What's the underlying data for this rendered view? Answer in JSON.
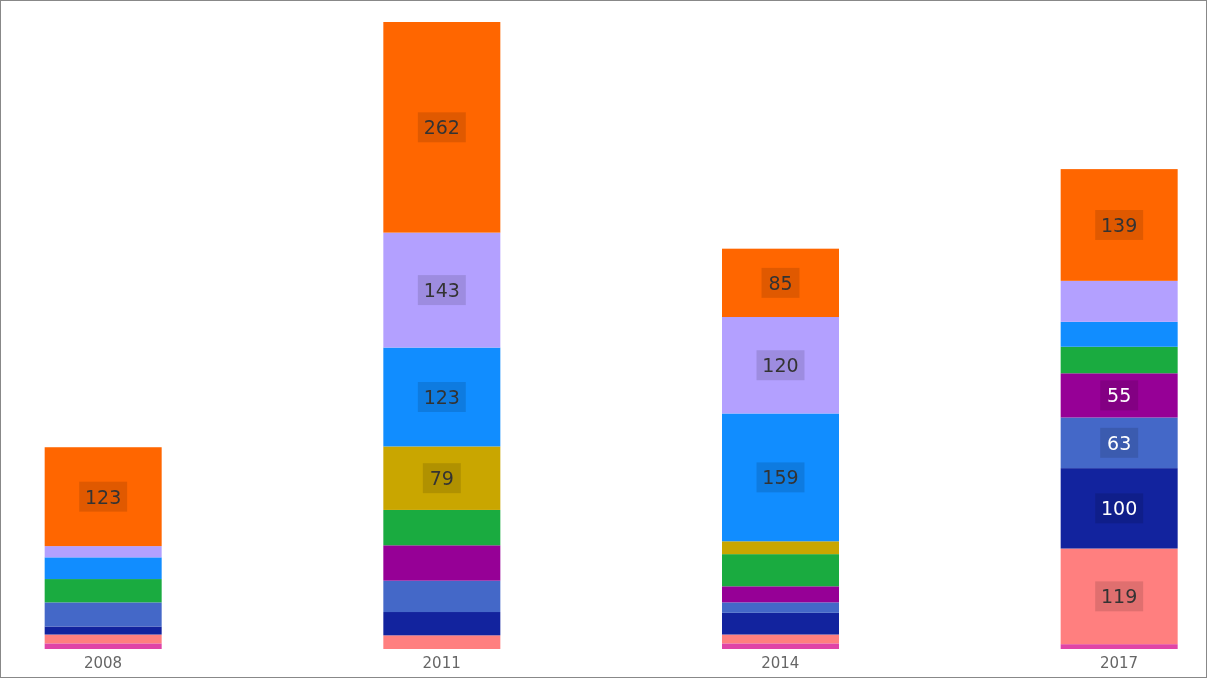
{
  "chart_data": {
    "type": "bar",
    "stacked": true,
    "categories": [
      "2008",
      "2011",
      "2014",
      "2017"
    ],
    "tick_labels": "x",
    "grid": false,
    "legend": false,
    "series": [
      {
        "color": "#e044a7",
        "values": [
          7,
          null,
          7,
          6
        ],
        "value_labels": [
          null,
          null,
          null,
          null
        ]
      },
      {
        "color": "#ff7f7f",
        "values": [
          11,
          17,
          11,
          119
        ],
        "value_labels": [
          null,
          null,
          null,
          "119"
        ]
      },
      {
        "color": "#12239e",
        "values": [
          10,
          29,
          27,
          100
        ],
        "value_labels": [
          null,
          null,
          null,
          "100"
        ]
      },
      {
        "color": "#4468c8",
        "values": [
          30,
          39,
          13,
          63
        ],
        "value_labels": [
          null,
          null,
          null,
          "63"
        ]
      },
      {
        "color": "#960096",
        "values": [
          null,
          44,
          20,
          55
        ],
        "value_labels": [
          null,
          null,
          null,
          "55"
        ]
      },
      {
        "color": "#1aab40",
        "values": [
          29,
          44,
          40,
          33
        ],
        "value_labels": [
          null,
          null,
          null,
          null
        ]
      },
      {
        "color": "#c9a600",
        "values": [
          null,
          79,
          16,
          null
        ],
        "value_labels": [
          null,
          "79",
          null,
          null
        ]
      },
      {
        "color": "#118dff",
        "values": [
          27,
          123,
          159,
          31
        ],
        "value_labels": [
          null,
          "123",
          "159",
          null
        ]
      },
      {
        "color": "#b3a0ff",
        "values": [
          14,
          143,
          120,
          51
        ],
        "value_labels": [
          null,
          "143",
          "120",
          null
        ]
      },
      {
        "color": "#ff6600",
        "values": [
          123,
          262,
          85,
          139
        ],
        "value_labels": [
          "123",
          "262",
          "85",
          "139"
        ]
      }
    ]
  }
}
